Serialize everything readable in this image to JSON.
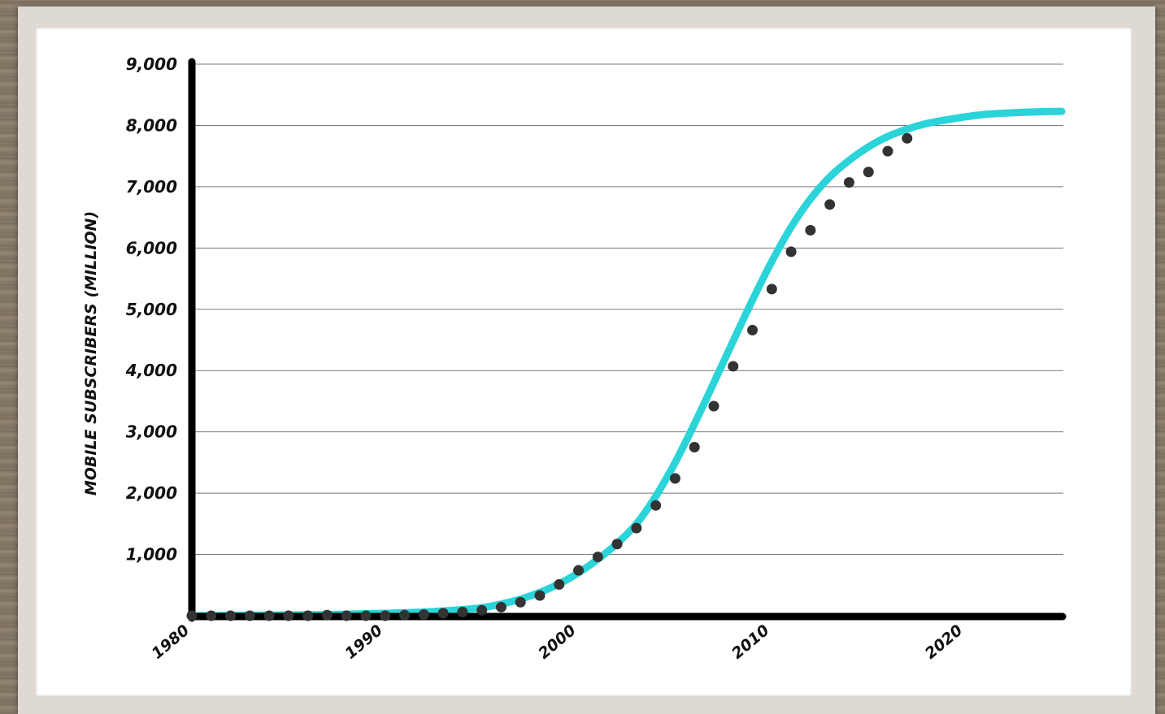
{
  "chart_data": {
    "type": "scatter",
    "title": "",
    "xlabel": "",
    "ylabel": "MOBILE SUBSCRIBERS (MILLION)",
    "xlim": [
      1980,
      2025
    ],
    "ylim": [
      0,
      9000
    ],
    "x_ticks": [
      1980,
      1990,
      2000,
      2010,
      2020
    ],
    "y_ticks": [
      {
        "value": 1000,
        "label": "1,000"
      },
      {
        "value": 2000,
        "label": "2,000"
      },
      {
        "value": 3000,
        "label": "3,000"
      },
      {
        "value": 4000,
        "label": "4,000"
      },
      {
        "value": 5000,
        "label": "5,000"
      },
      {
        "value": 6000,
        "label": "6,000"
      },
      {
        "value": 7000,
        "label": "7,000"
      },
      {
        "value": 8000,
        "label": "8,000"
      },
      {
        "value": 9000,
        "label": "9,000"
      }
    ],
    "grid": true,
    "colors": {
      "fit_line": "#2ad4d9",
      "points": "#333333",
      "axis": "#000000"
    },
    "series": [
      {
        "kind": "points",
        "x": [
          1980,
          1981,
          1982,
          1983,
          1984,
          1985,
          1986,
          1987,
          1988,
          1989,
          1990,
          1991,
          1992,
          1993,
          1994,
          1995,
          1996,
          1997,
          1998,
          1999,
          2000,
          2001,
          2002,
          2003,
          2004,
          2005,
          2006,
          2007,
          2008,
          2009,
          2010,
          2011,
          2012,
          2013,
          2014,
          2015,
          2016,
          2017
        ],
        "y": [
          0,
          0,
          0,
          0,
          0,
          0,
          0,
          10,
          0,
          0,
          0,
          10,
          20,
          40,
          60,
          90,
          140,
          220,
          330,
          510,
          740,
          960,
          1170,
          1430,
          1800,
          2240,
          2750,
          3420,
          4070,
          4660,
          5330,
          5940,
          6290,
          6710,
          7070,
          7240,
          7580,
          7790
        ]
      },
      {
        "kind": "fit",
        "x": [
          1980,
          1982,
          1984,
          1986,
          1988,
          1990,
          1992,
          1994,
          1995,
          1996,
          1997,
          1998,
          1999,
          2000,
          2001,
          2002,
          2003,
          2004,
          2005,
          2006,
          2007,
          2008,
          2009,
          2010,
          2011,
          2012,
          2013,
          2014,
          2015,
          2016,
          2017,
          2018,
          2019,
          2020,
          2021,
          2022,
          2023,
          2024,
          2025
        ],
        "y": [
          0,
          5,
          10,
          15,
          25,
          40,
          60,
          100,
          130,
          190,
          270,
          380,
          520,
          700,
          920,
          1180,
          1500,
          1950,
          2500,
          3130,
          3800,
          4480,
          5150,
          5780,
          6340,
          6800,
          7160,
          7430,
          7650,
          7820,
          7940,
          8030,
          8090,
          8140,
          8180,
          8200,
          8215,
          8225,
          8230
        ]
      }
    ]
  }
}
